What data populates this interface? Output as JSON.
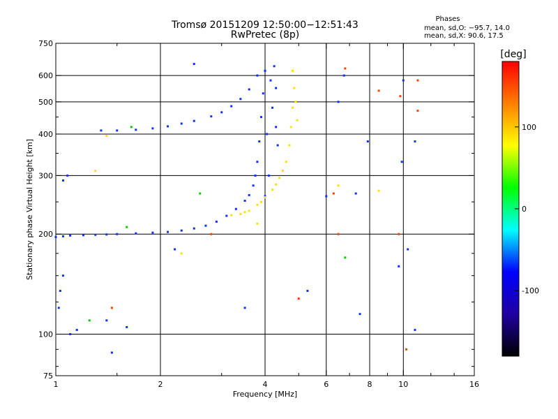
{
  "chart_data": {
    "type": "scatter",
    "title": "Tromsø 20151209 12:50:00−12:51:43",
    "subtitle": "RwPretec (8p)",
    "stats": {
      "heading": "Phases",
      "line_o": "mean, sd,O:  −95.7, 14.0",
      "line_x": "mean, sd,X:  90.6, 17.5"
    },
    "xlabel": "Frequency [MHz]",
    "ylabel": "Stationary phase Virtual Height [km]",
    "xscale": "log",
    "yscale": "log",
    "xlim": [
      1,
      16
    ],
    "ylim": [
      75,
      750
    ],
    "x_ticks": [
      1,
      2,
      4,
      6,
      8,
      10,
      16
    ],
    "y_ticks": [
      75,
      100,
      200,
      300,
      400,
      500,
      600,
      750
    ],
    "x_minor_ticks": [
      1.5,
      3,
      5,
      7,
      9,
      12,
      14
    ],
    "y_minor_ticks": [
      80,
      90,
      125,
      150,
      175,
      250,
      350,
      450
    ],
    "vgrid": [
      2,
      4,
      6,
      8,
      10
    ],
    "hgrid": [
      100,
      200,
      300,
      400,
      500,
      600
    ],
    "colorbar": {
      "label": "[deg]",
      "range": [
        -180,
        180
      ],
      "ticks": [
        100,
        0,
        -100
      ],
      "colors": [
        "#ff0000",
        "#ff8000",
        "#ffff00",
        "#00ff00",
        "#00ffff",
        "#0000ff",
        "#2000a0",
        "#000000"
      ]
    },
    "series": [
      {
        "values": [
          {
            "x": 1.0,
            "y": 196
          },
          {
            "x": 1.05,
            "y": 197
          },
          {
            "x": 1.1,
            "y": 198
          },
          {
            "x": 1.2,
            "y": 198.5
          },
          {
            "x": 1.3,
            "y": 199
          },
          {
            "x": 1.4,
            "y": 199.5
          },
          {
            "x": 1.5,
            "y": 200
          },
          {
            "x": 1.7,
            "y": 201
          },
          {
            "x": 1.9,
            "y": 202
          },
          {
            "x": 2.1,
            "y": 203
          },
          {
            "x": 2.3,
            "y": 205
          },
          {
            "x": 2.5,
            "y": 208
          },
          {
            "x": 2.7,
            "y": 212
          },
          {
            "x": 2.9,
            "y": 218
          },
          {
            "x": 3.1,
            "y": 227
          },
          {
            "x": 3.3,
            "y": 238
          },
          {
            "x": 3.5,
            "y": 252
          },
          {
            "x": 3.6,
            "y": 262
          },
          {
            "x": 3.7,
            "y": 280
          },
          {
            "x": 3.75,
            "y": 300
          },
          {
            "x": 3.8,
            "y": 330
          },
          {
            "x": 3.85,
            "y": 380
          },
          {
            "x": 3.9,
            "y": 450
          },
          {
            "x": 3.95,
            "y": 530
          },
          {
            "x": 4.0,
            "y": 620
          },
          {
            "x": 4.15,
            "y": 580
          },
          {
            "x": 4.3,
            "y": 550
          },
          {
            "x": 4.2,
            "y": 480
          },
          {
            "x": 4.3,
            "y": 420
          },
          {
            "x": 4.35,
            "y": 370
          },
          {
            "x": 4.1,
            "y": 300
          },
          {
            "x": 4.0,
            "y": 260
          },
          {
            "x": 4.05,
            "y": 400
          },
          {
            "x": 4.25,
            "y": 640
          },
          {
            "x": 1.35,
            "y": 410
          },
          {
            "x": 1.5,
            "y": 410
          },
          {
            "x": 1.7,
            "y": 412
          },
          {
            "x": 1.9,
            "y": 416
          },
          {
            "x": 2.1,
            "y": 422
          },
          {
            "x": 2.3,
            "y": 430
          },
          {
            "x": 2.5,
            "y": 438
          },
          {
            "x": 2.8,
            "y": 452
          },
          {
            "x": 3.0,
            "y": 465
          },
          {
            "x": 3.2,
            "y": 485
          },
          {
            "x": 3.4,
            "y": 510
          },
          {
            "x": 3.6,
            "y": 545
          },
          {
            "x": 3.8,
            "y": 600
          },
          {
            "x": 1.05,
            "y": 290
          },
          {
            "x": 1.08,
            "y": 300
          },
          {
            "x": 1.03,
            "y": 135
          },
          {
            "x": 1.05,
            "y": 150
          },
          {
            "x": 1.02,
            "y": 120
          },
          {
            "x": 1.1,
            "y": 100
          },
          {
            "x": 1.15,
            "y": 103
          },
          {
            "x": 1.4,
            "y": 110
          },
          {
            "x": 1.45,
            "y": 88
          },
          {
            "x": 1.6,
            "y": 105
          },
          {
            "x": 3.5,
            "y": 120
          },
          {
            "x": 5.3,
            "y": 135
          },
          {
            "x": 6.0,
            "y": 260
          },
          {
            "x": 6.5,
            "y": 500
          },
          {
            "x": 6.75,
            "y": 600
          },
          {
            "x": 7.3,
            "y": 265
          },
          {
            "x": 7.9,
            "y": 380
          },
          {
            "x": 9.7,
            "y": 160
          },
          {
            "x": 9.9,
            "y": 330
          },
          {
            "x": 10.8,
            "y": 380
          },
          {
            "x": 10.0,
            "y": 580
          },
          {
            "x": 7.5,
            "y": 115
          },
          {
            "x": 10.8,
            "y": 103
          },
          {
            "x": 10.3,
            "y": 180
          },
          {
            "x": 2.2,
            "y": 180
          },
          {
            "x": 2.5,
            "y": 650
          }
        ],
        "color": "#1030ff"
      },
      {
        "values": [
          {
            "x": 3.2,
            "y": 228
          },
          {
            "x": 3.4,
            "y": 230
          },
          {
            "x": 3.6,
            "y": 235
          },
          {
            "x": 3.8,
            "y": 245
          },
          {
            "x": 4.0,
            "y": 258
          },
          {
            "x": 4.2,
            "y": 272
          },
          {
            "x": 4.4,
            "y": 295
          },
          {
            "x": 4.6,
            "y": 330
          },
          {
            "x": 4.7,
            "y": 370
          },
          {
            "x": 4.75,
            "y": 420
          },
          {
            "x": 4.8,
            "y": 480
          },
          {
            "x": 4.85,
            "y": 550
          },
          {
            "x": 4.8,
            "y": 620
          },
          {
            "x": 4.9,
            "y": 500
          },
          {
            "x": 4.95,
            "y": 440
          },
          {
            "x": 4.5,
            "y": 310
          },
          {
            "x": 4.3,
            "y": 282
          },
          {
            "x": 3.9,
            "y": 250
          },
          {
            "x": 3.5,
            "y": 233
          },
          {
            "x": 1.3,
            "y": 310
          },
          {
            "x": 1.4,
            "y": 395
          },
          {
            "x": 2.3,
            "y": 175
          },
          {
            "x": 3.8,
            "y": 215
          },
          {
            "x": 6.5,
            "y": 280
          },
          {
            "x": 8.5,
            "y": 270
          }
        ],
        "color": "#ffe000"
      },
      {
        "values": [
          {
            "x": 1.65,
            "y": 420
          },
          {
            "x": 1.25,
            "y": 110
          },
          {
            "x": 6.8,
            "y": 170
          },
          {
            "x": 2.6,
            "y": 265
          },
          {
            "x": 1.6,
            "y": 210
          }
        ],
        "color": "#00cc00"
      },
      {
        "values": [
          {
            "x": 6.8,
            "y": 630
          },
          {
            "x": 8.5,
            "y": 540
          },
          {
            "x": 9.8,
            "y": 520
          },
          {
            "x": 11.0,
            "y": 580
          },
          {
            "x": 11.0,
            "y": 470
          },
          {
            "x": 9.7,
            "y": 200
          },
          {
            "x": 10.2,
            "y": 90
          },
          {
            "x": 5.0,
            "y": 128
          },
          {
            "x": 6.3,
            "y": 265
          },
          {
            "x": 2.8,
            "y": 200
          },
          {
            "x": 1.45,
            "y": 120
          },
          {
            "x": 6.5,
            "y": 200
          }
        ],
        "color": "#ff4000"
      }
    ]
  }
}
